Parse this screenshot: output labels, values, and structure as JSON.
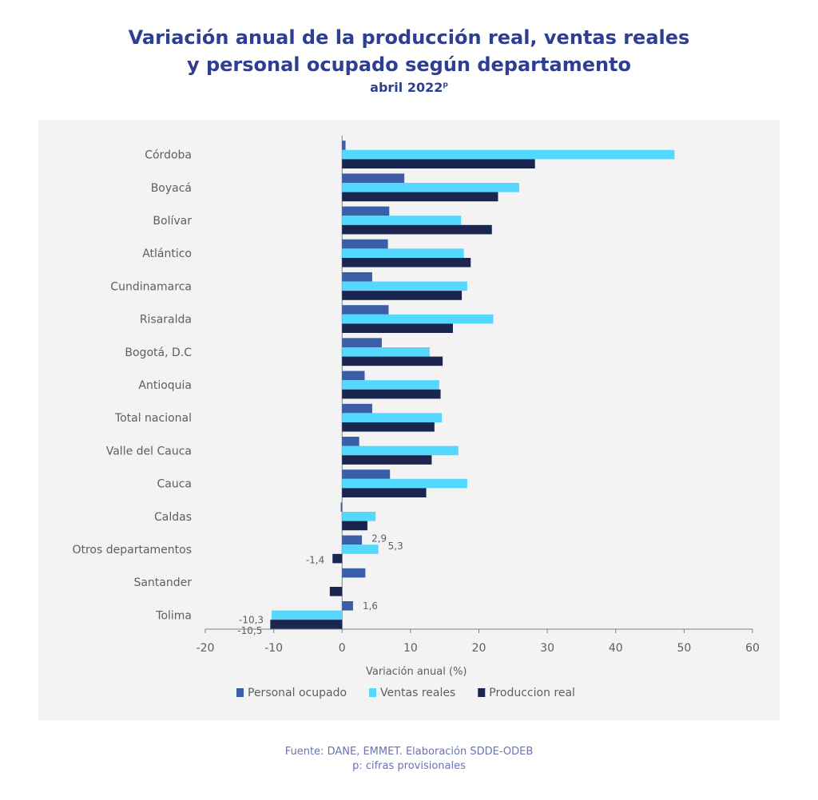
{
  "title_line1": "Variación anual de la producción real, ventas reales",
  "title_line2": "y personal ocupado según departamento",
  "subtitle": "abril 2022",
  "subtitle_sup": "p",
  "footer_line1": "Fuente: DANE, EMMET. Elaboración SDDE-ODEB",
  "footer_line2": "p: cifras provisionales",
  "chart_data": {
    "type": "bar",
    "orientation": "horizontal",
    "categories": [
      "Córdoba",
      "Boyacá",
      "Bolívar",
      "Atlántico",
      "Cundinamarca",
      "Risaralda",
      "Bogotá, D.C",
      "Antioquia",
      "Total nacional",
      "Valle del Cauca",
      "Cauca",
      "Caldas",
      "Otros departamentos",
      "Santander",
      "Tolima"
    ],
    "series": [
      {
        "name": "Personal ocupado",
        "color": "#3a5fa8",
        "values": [
          0.5,
          9.1,
          6.9,
          6.7,
          4.4,
          6.8,
          5.8,
          3.3,
          4.4,
          2.5,
          7.0,
          -0.2,
          2.9,
          3.4,
          1.6
        ]
      },
      {
        "name": "Ventas reales",
        "color": "#55d8fd",
        "values": [
          48.6,
          25.9,
          17.4,
          17.8,
          18.3,
          22.1,
          12.8,
          14.2,
          14.6,
          17.0,
          18.3,
          4.9,
          5.3,
          0.0,
          -10.3
        ]
      },
      {
        "name": "Produccion real",
        "color": "#1a2550",
        "values": [
          28.2,
          22.8,
          21.9,
          18.8,
          17.5,
          16.2,
          14.7,
          14.4,
          13.5,
          13.1,
          12.3,
          3.7,
          -1.4,
          -1.8,
          -10.5
        ]
      }
    ],
    "data_labels": [
      {
        "category": "Otros departamentos",
        "series": "Personal ocupado",
        "text": "2,9"
      },
      {
        "category": "Otros departamentos",
        "series": "Ventas reales",
        "text": "5,3"
      },
      {
        "category": "Otros departamentos",
        "series": "Produccion real",
        "text": "-1,4"
      },
      {
        "category": "Tolima",
        "series": "Personal ocupado",
        "text": "1,6"
      },
      {
        "category": "Tolima",
        "series": "Ventas reales",
        "text": "-10,3"
      },
      {
        "category": "Tolima",
        "series": "Produccion real",
        "text": "-10,5"
      }
    ],
    "x_ticks": [
      -20,
      -10,
      0,
      10,
      20,
      30,
      40,
      50,
      60
    ],
    "xlim": [
      -20,
      60
    ],
    "xlabel": "Variación anual (%)",
    "ylabel": "",
    "legend_position": "bottom"
  }
}
